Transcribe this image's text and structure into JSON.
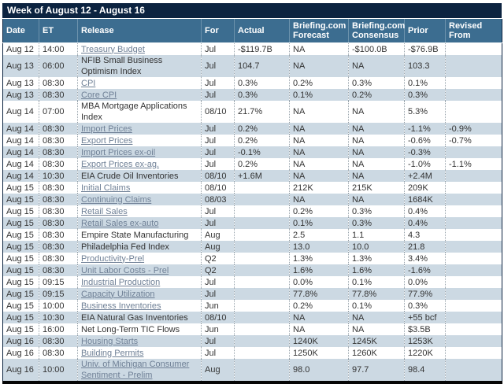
{
  "title": "Week of August 12 - August 16",
  "columns": [
    "Date",
    "ET",
    "Release",
    "For",
    "Actual",
    "Briefing.com Forecast",
    "Briefing.com Consensus",
    "Prior",
    "Revised From"
  ],
  "colors": {
    "title_bar": "#0c2340",
    "header_bg": "#3c6d90",
    "row_alt": "#ccd9e3",
    "link": "#6f8096",
    "text": "#333333",
    "bottom_bar": "#050505"
  },
  "rows": [
    {
      "date": "Aug 12",
      "et": "14:00",
      "release": "Treasury Budget",
      "is_link": true,
      "for": "Jul",
      "actual": "-$119.7B",
      "forecast": "NA",
      "consensus": "-$100.0B",
      "prior": "-$76.9B",
      "revised": ""
    },
    {
      "date": "Aug 13",
      "et": "06:00",
      "release": "NFIB Small Business Optimism Index",
      "is_link": false,
      "for": "Jul",
      "actual": "104.7",
      "forecast": "NA",
      "consensus": "NA",
      "prior": "103.3",
      "revised": ""
    },
    {
      "date": "Aug 13",
      "et": "08:30",
      "release": "CPI",
      "is_link": true,
      "for": "Jul",
      "actual": "0.3%",
      "forecast": "0.2%",
      "consensus": "0.3%",
      "prior": "0.1%",
      "revised": ""
    },
    {
      "date": "Aug 13",
      "et": "08:30",
      "release": "Core CPI",
      "is_link": true,
      "for": "Jul",
      "actual": "0.3%",
      "forecast": "0.1%",
      "consensus": "0.2%",
      "prior": "0.3%",
      "revised": ""
    },
    {
      "date": "Aug 14",
      "et": "07:00",
      "release": "MBA Mortgage Applications Index",
      "is_link": false,
      "for": "08/10",
      "actual": "21.7%",
      "forecast": "NA",
      "consensus": "NA",
      "prior": "5.3%",
      "revised": ""
    },
    {
      "date": "Aug 14",
      "et": "08:30",
      "release": "Import Prices",
      "is_link": true,
      "for": "Jul",
      "actual": "0.2%",
      "forecast": "NA",
      "consensus": "NA",
      "prior": "-1.1%",
      "revised": "-0.9%"
    },
    {
      "date": "Aug 14",
      "et": "08:30",
      "release": "Export Prices",
      "is_link": true,
      "for": "Jul",
      "actual": "0.2%",
      "forecast": "NA",
      "consensus": "NA",
      "prior": "-0.6%",
      "revised": "-0.7%"
    },
    {
      "date": "Aug 14",
      "et": "08:30",
      "release": "Import Prices ex-oil",
      "is_link": true,
      "for": "Jul",
      "actual": "-0.1%",
      "forecast": "NA",
      "consensus": "NA",
      "prior": "-0.3%",
      "revised": ""
    },
    {
      "date": "Aug 14",
      "et": "08:30",
      "release": "Export Prices ex-ag.",
      "is_link": true,
      "for": "Jul",
      "actual": "0.2%",
      "forecast": "NA",
      "consensus": "NA",
      "prior": "-1.0%",
      "revised": "-1.1%"
    },
    {
      "date": "Aug 14",
      "et": "10:30",
      "release": "EIA Crude Oil Inventories",
      "is_link": false,
      "for": "08/10",
      "actual": "+1.6M",
      "forecast": "NA",
      "consensus": "NA",
      "prior": "+2.4M",
      "revised": ""
    },
    {
      "date": "Aug 15",
      "et": "08:30",
      "release": "Initial Claims",
      "is_link": true,
      "for": "08/10",
      "actual": "",
      "forecast": "212K",
      "consensus": "215K",
      "prior": "209K",
      "revised": ""
    },
    {
      "date": "Aug 15",
      "et": "08:30",
      "release": "Continuing Claims",
      "is_link": true,
      "for": "08/03",
      "actual": "",
      "forecast": "NA",
      "consensus": "NA",
      "prior": "1684K",
      "revised": ""
    },
    {
      "date": "Aug 15",
      "et": "08:30",
      "release": "Retail Sales",
      "is_link": true,
      "for": "Jul",
      "actual": "",
      "forecast": "0.2%",
      "consensus": "0.3%",
      "prior": "0.4%",
      "revised": ""
    },
    {
      "date": "Aug 15",
      "et": "08:30",
      "release": "Retail Sales ex-auto",
      "is_link": true,
      "for": "Jul",
      "actual": "",
      "forecast": "0.1%",
      "consensus": "0.3%",
      "prior": "0.4%",
      "revised": ""
    },
    {
      "date": "Aug 15",
      "et": "08:30",
      "release": "Empire State Manufacturing",
      "is_link": false,
      "for": "Aug",
      "actual": "",
      "forecast": "2.5",
      "consensus": "1.1",
      "prior": "4.3",
      "revised": ""
    },
    {
      "date": "Aug 15",
      "et": "08:30",
      "release": "Philadelphia Fed Index",
      "is_link": false,
      "for": "Aug",
      "actual": "",
      "forecast": "13.0",
      "consensus": "10.0",
      "prior": "21.8",
      "revised": ""
    },
    {
      "date": "Aug 15",
      "et": "08:30",
      "release": "Productivity-Prel",
      "is_link": true,
      "for": "Q2",
      "actual": "",
      "forecast": "1.3%",
      "consensus": "1.3%",
      "prior": "3.4%",
      "revised": ""
    },
    {
      "date": "Aug 15",
      "et": "08:30",
      "release": "Unit Labor Costs - Prel",
      "is_link": true,
      "for": "Q2",
      "actual": "",
      "forecast": "1.6%",
      "consensus": "1.6%",
      "prior": "-1.6%",
      "revised": ""
    },
    {
      "date": "Aug 15",
      "et": "09:15",
      "release": "Industrial Production",
      "is_link": true,
      "for": "Jul",
      "actual": "",
      "forecast": "0.0%",
      "consensus": "0.1%",
      "prior": "0.0%",
      "revised": ""
    },
    {
      "date": "Aug 15",
      "et": "09:15",
      "release": "Capacity Utilization",
      "is_link": true,
      "for": "Jul",
      "actual": "",
      "forecast": "77.8%",
      "consensus": "77.8%",
      "prior": "77.9%",
      "revised": ""
    },
    {
      "date": "Aug 15",
      "et": "10:00",
      "release": "Business Inventories",
      "is_link": true,
      "for": "Jun",
      "actual": "",
      "forecast": "0.2%",
      "consensus": "0.1%",
      "prior": "0.3%",
      "revised": ""
    },
    {
      "date": "Aug 15",
      "et": "10:30",
      "release": "EIA Natural Gas Inventories",
      "is_link": false,
      "for": "08/10",
      "actual": "",
      "forecast": "NA",
      "consensus": "NA",
      "prior": "+55 bcf",
      "revised": ""
    },
    {
      "date": "Aug 15",
      "et": "16:00",
      "release": "Net Long-Term TIC Flows",
      "is_link": false,
      "for": "Jun",
      "actual": "",
      "forecast": "NA",
      "consensus": "NA",
      "prior": "$3.5B",
      "revised": ""
    },
    {
      "date": "Aug 16",
      "et": "08:30",
      "release": "Housing Starts",
      "is_link": true,
      "for": "Jul",
      "actual": "",
      "forecast": "1240K",
      "consensus": "1245K",
      "prior": "1253K",
      "revised": ""
    },
    {
      "date": "Aug 16",
      "et": "08:30",
      "release": "Building Permits",
      "is_link": true,
      "for": "Jul",
      "actual": "",
      "forecast": "1250K",
      "consensus": "1260K",
      "prior": "1220K",
      "revised": ""
    },
    {
      "date": "Aug 16",
      "et": "10:00",
      "release": "Univ. of Michigan Consumer Sentiment - Prelim",
      "is_link": true,
      "for": "Aug",
      "actual": "",
      "forecast": "98.0",
      "consensus": "97.7",
      "prior": "98.4",
      "revised": ""
    }
  ]
}
